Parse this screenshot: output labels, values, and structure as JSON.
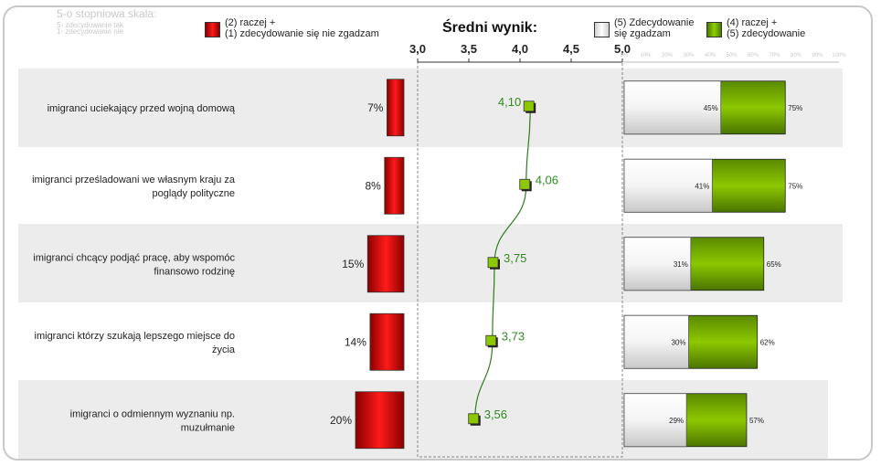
{
  "header": {
    "scale_title": "5-o stopniowa skala:",
    "scale_note_1": "5- zdecydowanie tak",
    "scale_note_2": "1- zdecydowanie nie",
    "legend_neg_1": "(2) raczej +",
    "legend_neg_2": "(1) zdecydowanie się nie zgadzam",
    "mean_title": "Średni wynik:",
    "legend_mid_1": "(5) Zdecydowanie",
    "legend_mid_2": "się zgadzam",
    "legend_pos_1": "(4) raczej +",
    "legend_pos_2": "(5) zdecydowanie"
  },
  "colors": {
    "red": "#cc0000",
    "white_bar": "#f0f0f0",
    "green": "#6aa000",
    "line": "#2e7d1e",
    "mean_text": "#2e8b1e",
    "row_bg": "#ececec"
  },
  "chart_data": {
    "type": "bar",
    "categories": [
      "imigranci uciekający przed wojną domową",
      "imigranci prześladowani we własnym kraju za poglądy polityczne",
      "imigranci chcący podjąć pracę, aby wspomóc finansowo rodzinę",
      "imigranci którzy szukają lepszego miejsce do życia",
      "imigranci o odmiennym wyznaniu np. muzułmanie"
    ],
    "label_lines": [
      [
        "imigranci uciekający przed wojną domową"
      ],
      [
        "imigranci prześladowani we własnym kraju za",
        "poglądy polityczne"
      ],
      [
        "imigranci chcący podjąć pracę, aby wspomóc",
        "finansowo rodzinę"
      ],
      [
        "imigranci którzy szukają lepszego miejsce do",
        "życia"
      ],
      [
        "imigranci o odmiennym wyznaniu np.",
        "muzułmanie"
      ]
    ],
    "negative": {
      "values": [
        7,
        8,
        15,
        14,
        20
      ],
      "labels": [
        "7%",
        "8%",
        "15%",
        "14%",
        "20%"
      ]
    },
    "mean": {
      "values": [
        4.1,
        4.06,
        3.75,
        3.73,
        3.56
      ],
      "labels": [
        "4,10",
        "4,06",
        "3,75",
        "3,73",
        "3,56"
      ],
      "axis_ticks": [
        "3,0",
        "3,5",
        "4,0",
        "4,5",
        "5,0"
      ],
      "xlim": [
        3.0,
        5.0
      ]
    },
    "strongly_agree": {
      "values": [
        45,
        41,
        31,
        30,
        29
      ],
      "labels": [
        "45%",
        "41%",
        "31%",
        "30%",
        "29%"
      ]
    },
    "agree_total": {
      "values": [
        75,
        75,
        65,
        62,
        57
      ],
      "labels": [
        "75%",
        "75%",
        "65%",
        "62%",
        "57%"
      ]
    },
    "pct_axis_ticks": [
      "0%",
      "10%",
      "20%",
      "30%",
      "40%",
      "50%",
      "60%",
      "70%",
      "80%",
      "90%",
      "100%"
    ]
  }
}
